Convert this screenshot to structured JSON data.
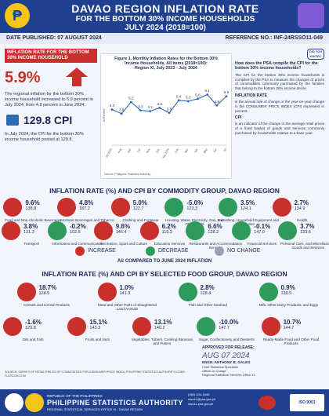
{
  "header": {
    "logo_glyph": "₱",
    "title": "DAVAO REGION INFLATION RATE",
    "line2": "FOR THE BOTTOM 30% INCOME HOUSEHOLDS",
    "line3": "JULY 2024 (2018=100)"
  },
  "pubbar": {
    "date_published": "DATE PUBLISHED: 07 AUGUST 2024",
    "reference": "REFERENCE NO.: INF-24RSSO11-049"
  },
  "left": {
    "box_title": "INFLATION RATE FOR THE BOTTOM 30% INCOME HOUSEHOLD",
    "rate": "5.9%",
    "rate_text": "The regional inflation for the bottom 30% income household increased to 5.9 percent in July 2024, from 4.8 percent in June 2024.",
    "cpi_value": "129.8 CPI",
    "cpi_text": "In July 2024, the CPI for the bottom 30% income household posted at 129.8."
  },
  "chart": {
    "title_l1": "Figure 1. Monthly Inflation Rates for the Bottom 30%",
    "title_l2": "Income Households, All Items (2018=100):",
    "title_l3": "Region XI, July 2023 - July 2024",
    "ylabel": "In Percent",
    "source": "Source: Philippine Statistics Authority"
  },
  "chart_data": {
    "type": "line",
    "categories": [
      "Jul 2023",
      "Aug",
      "Sep",
      "Oct",
      "Nov",
      "Dec",
      "Jan 2024",
      "Feb",
      "Mar",
      "Apr",
      "May",
      "Jun",
      "Jul"
    ],
    "values": [
      4.3,
      3.8,
      5.2,
      4.2,
      4.1,
      4.5,
      3.9,
      5.4,
      5.3,
      5.6,
      6.1,
      4.8,
      5.9
    ],
    "ylabel": "In Percent",
    "ylim": [
      0,
      7
    ],
    "line_color": "#2c6bb5"
  },
  "right": {
    "badge": "DID YOU KNOW?",
    "question": "How does the PSA compile the CPI for the bottom 30% income households?",
    "answer": "The CPI for the bottom 30% income households is compiled by the PSA to measure the changes of prices of commodities commonly purchased by the families that belong to the bottom 30% income decile.",
    "inflation_head": "INFLATION RATE",
    "inflation_text": "is the annual rate of change or the year-on-year change in the CONSUMER PRICE INDEX (CPI) expressed in percent.",
    "cpi_head": "CPI",
    "cpi_text": "is an indicator of the change in the average retail prices of a fixed basket of goods and services commonly purchased by households relative to a base year."
  },
  "commodity": {
    "title": "INFLATION RATE (%) AND CPI BY COMMODITY GROUP, DAVAO REGION",
    "items": [
      {
        "value": "9.6%",
        "cpi": "138.8",
        "name": "Food and Non-Alcoholic Beverages",
        "color": "#c9302c"
      },
      {
        "value": "4.8%",
        "cpi": "187.2",
        "name": "Alcoholic Beverages and Tobacco",
        "color": "#c9302c"
      },
      {
        "value": "5.0%",
        "cpi": "122.7",
        "name": "Clothing and Footwear",
        "color": "#c9302c"
      },
      {
        "value": "-5.0%",
        "cpi": "123.3",
        "name": "Housing, Water, Electricity, Gas, and Other Fuels",
        "color": "#2e9b5b"
      },
      {
        "value": "3.5%",
        "cpi": "124.1",
        "name": "Furnishing, Household Equipment and Routine",
        "color": "#2e9b5b"
      },
      {
        "value": "2.7%",
        "cpi": "134.9",
        "name": "Health",
        "color": "#c9302c"
      },
      {
        "value": "3.8%",
        "cpi": "131.3",
        "name": "Transport",
        "color": "#c9302c"
      },
      {
        "value": "-0.2%",
        "cpi": "102.5",
        "name": "Information and Communication",
        "color": "#2e9b5b"
      },
      {
        "value": "9.6%",
        "cpi": "146.4",
        "name": "Recreation, Sport and Culture",
        "color": "#c9302c"
      },
      {
        "value": "6.2%",
        "cpi": "119.2",
        "name": "Education Services",
        "color": "#c9302c"
      },
      {
        "value": "6.6%",
        "cpi": "128.2",
        "name": "Restaurants and Accommodation Services",
        "color": "#2e9b5b"
      },
      {
        "value": "-0.1%",
        "cpi": "147.0",
        "name": "Financial Services",
        "color": "#2e9b5b"
      },
      {
        "value": "3.7%",
        "cpi": "123.6",
        "name": "Personal Care, and Miscellaneous Goods and Services",
        "color": "#2e9b5b"
      }
    ]
  },
  "legend": {
    "increase": "INCREASE",
    "decrease": "DECREASE",
    "nochange": "NO CHANGE",
    "increase_color": "#c9302c",
    "decrease_color": "#2e9b5b",
    "nochange_color": "#9aa3b5",
    "note": "AS COMPARED TO JUNE 2024 INFLATION"
  },
  "food": {
    "title": "INFLATION RATE (%) AND CPI BY SELECTED FOOD GROUP, DAVAO REGION",
    "items": [
      {
        "value": "18.7%",
        "cpi": "124.5",
        "name": "Cereals and Cereal Products",
        "color": "#c9302c"
      },
      {
        "value": "1.0%",
        "cpi": "141.3",
        "name": "Meat and Other Parts of Slaughtered Land Animals",
        "color": "#c9302c"
      },
      {
        "value": "2.8%",
        "cpi": "128.4",
        "name": "Fish and Other Seafood",
        "color": "#2e9b5b"
      },
      {
        "value": "0.9%",
        "cpi": "130.5",
        "name": "Milk, Other Dairy Products, and Eggs",
        "color": "#2e9b5b"
      },
      {
        "value": "-1.6%",
        "cpi": "129.8",
        "name": "Oils and Fats",
        "color": "#c9302c"
      },
      {
        "value": "15.1%",
        "cpi": "143.3",
        "name": "Fruits and Nuts",
        "color": "#c9302c"
      },
      {
        "value": "13.1%",
        "cpi": "140.2",
        "name": "Vegetables, Tubers, Cooking Bananas and Pulses",
        "color": "#c9302c"
      },
      {
        "value": "-10.0%",
        "cpi": "147.7",
        "name": "Sugar, Confectionery and Desserts",
        "color": "#2e9b5b"
      },
      {
        "value": "10.7%",
        "cpi": "144.7",
        "name": "Ready-Made Food and Other Food Products",
        "color": "#c9302c"
      }
    ]
  },
  "footnote": "SOURCE: SURVEY OF RETAIL PRICES OF COMMODITIES FOR CONSUMER PRICE INDEX, PHILIPPINE STATISTICS AUTHORITY  ICONS: FLATICON.COM",
  "approval": {
    "label": "APPROVED FOR RELEASE:",
    "signature": "AUG 07 2024",
    "name": "ENGR. ANTHONY B. GALES",
    "pos1": "Chief Statistical Specialist",
    "pos2": "Officer-in-Charge",
    "pos3": "Regional Statistical Services Office 11"
  },
  "footer": {
    "republic": "REPUBLIC OF THE PHILIPPINES",
    "psa": "PHILIPPINE STATISTICS AUTHORITY",
    "office": "REGIONAL STATISTICAL SERVICES OFFICE XI - DAVAO REGION",
    "contact1": "(082) 224-1640",
    "contact2": "rsso11@psa.gov.ph",
    "contact3": "rsso11.psa.gov.ph",
    "iso": "ISO 9001"
  }
}
